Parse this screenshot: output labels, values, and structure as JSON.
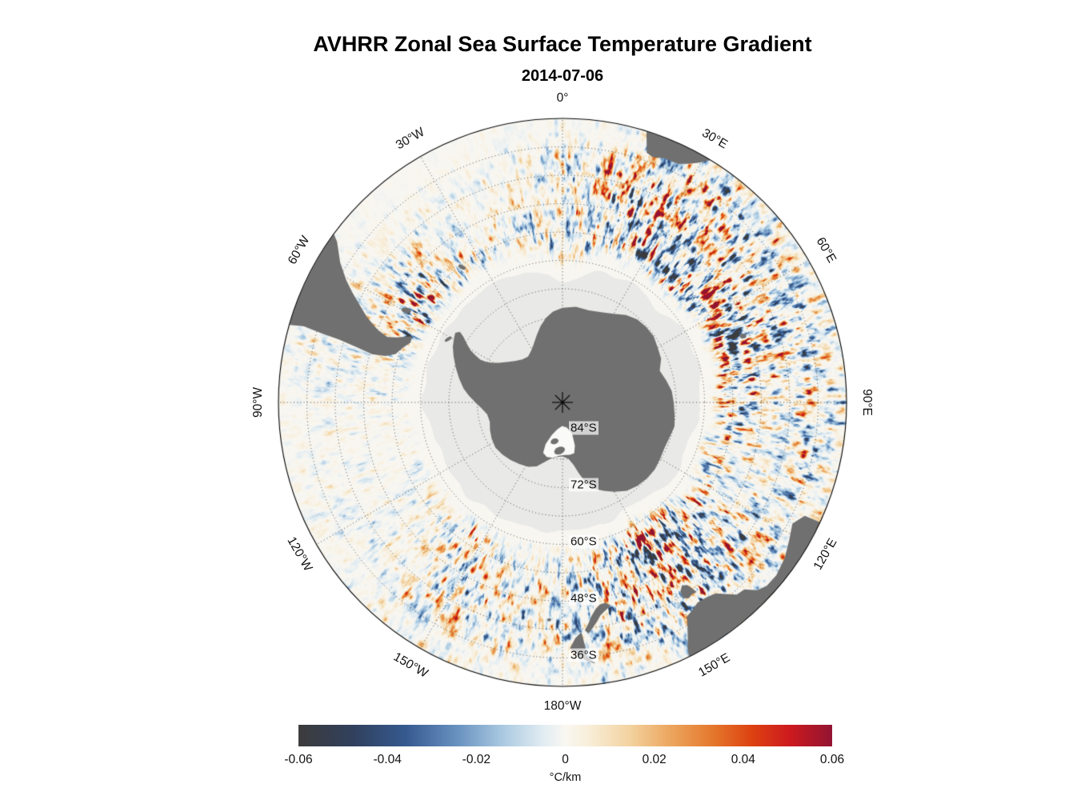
{
  "title": "AVHRR Zonal Sea Surface Temperature Gradient",
  "subtitle": "2014-07-06",
  "chart_data": {
    "type": "heatmap",
    "title": "AVHRR Zonal Sea Surface Temperature Gradient",
    "date": "2014-07-06",
    "sensor": "AVHRR",
    "variable": "zonal sea surface temperature gradient",
    "units": "°C/km",
    "projection": "south polar stereographic, 90°S at center, 30°S at outer edge",
    "lat_range": [
      -90,
      -30
    ],
    "graticule": {
      "parallel_step_deg": 6,
      "meridian_step_deg": 30
    },
    "colorbar": {
      "min": -0.06,
      "max": 0.06,
      "ticks": [
        "-0.06",
        "-0.04",
        "-0.02",
        "0",
        "0.02",
        "0.04",
        "0.06"
      ],
      "label": "°C/km"
    },
    "colormap_stops": [
      [
        0.0,
        "#3c3c3c"
      ],
      [
        0.1,
        "#31405c"
      ],
      [
        0.2,
        "#35598f"
      ],
      [
        0.3,
        "#6a93c1"
      ],
      [
        0.38,
        "#a8c8e0"
      ],
      [
        0.46,
        "#e2edf3"
      ],
      [
        0.5,
        "#f9f7f1"
      ],
      [
        0.54,
        "#f8efdc"
      ],
      [
        0.62,
        "#f3d3a0"
      ],
      [
        0.7,
        "#eca45c"
      ],
      [
        0.78,
        "#e4752a"
      ],
      [
        0.85,
        "#dd4111"
      ],
      [
        0.92,
        "#cd1a1e"
      ],
      [
        1.0,
        "#921432"
      ]
    ],
    "meridian_labels": [
      {
        "text": "0°",
        "angle": 0
      },
      {
        "text": "30°E",
        "angle": 30
      },
      {
        "text": "60°E",
        "angle": 60
      },
      {
        "text": "90°E",
        "angle": 90
      },
      {
        "text": "120°E",
        "angle": 120
      },
      {
        "text": "150°E",
        "angle": 150
      },
      {
        "text": "180°W",
        "angle": 180
      },
      {
        "text": "150°W",
        "angle": 210
      },
      {
        "text": "120°W",
        "angle": 240
      },
      {
        "text": "90°W",
        "angle": 270
      },
      {
        "text": "60°W",
        "angle": 300
      },
      {
        "text": "30°W",
        "angle": 330
      }
    ],
    "parallel_labels": [
      {
        "text": "84°S",
        "lat": -84
      },
      {
        "text": "72°S",
        "lat": -72
      },
      {
        "text": "60°S",
        "lat": -60
      },
      {
        "text": "48°S",
        "lat": -48
      },
      {
        "text": "36°S",
        "lat": -36
      }
    ],
    "land_color": "#707070",
    "ice_color": "#e9e9e7",
    "shelf_color": "#fafaf8",
    "background_color": "#ffffff"
  }
}
